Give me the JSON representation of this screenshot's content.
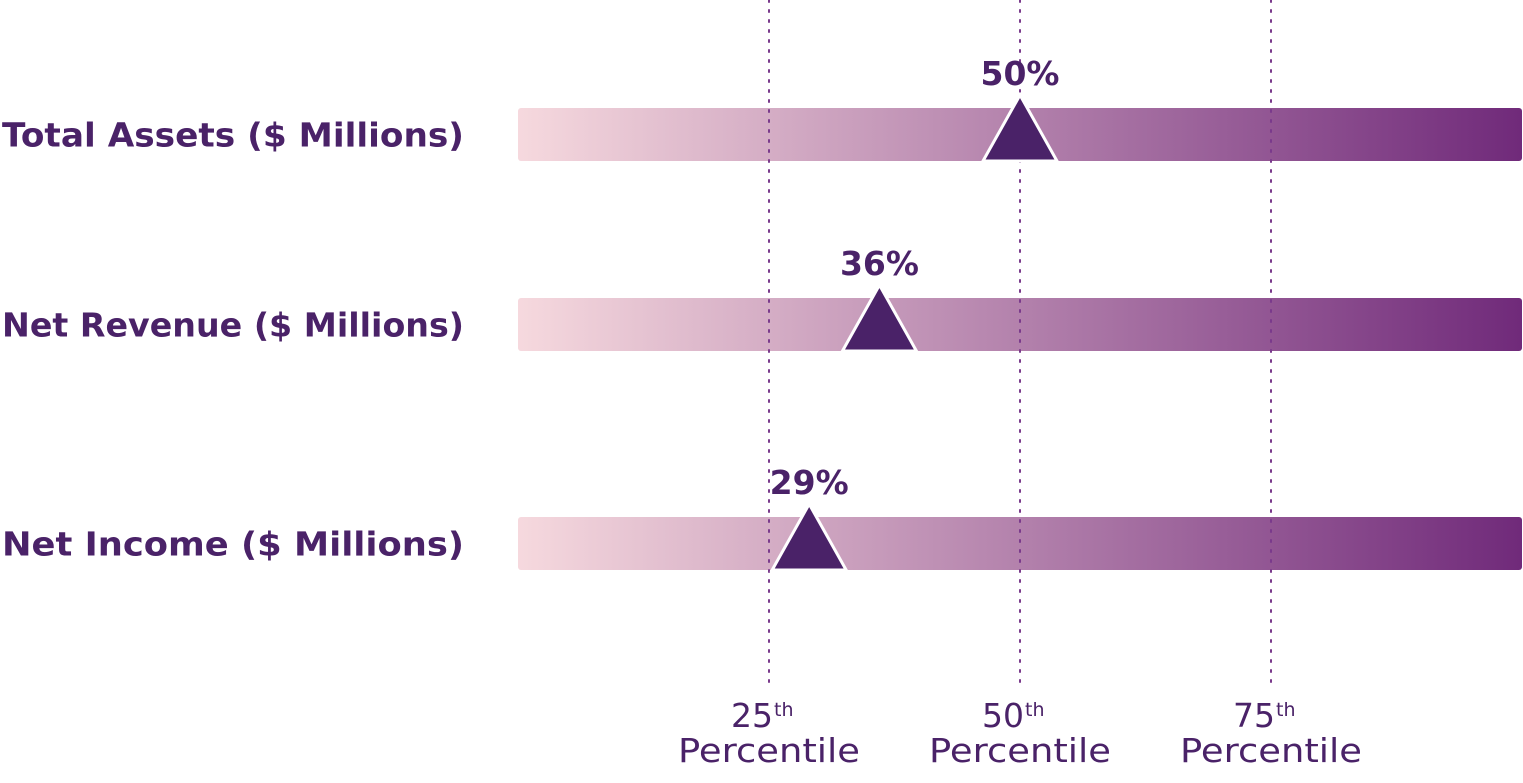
{
  "chart_data": {
    "type": "bar",
    "categories": [
      "Total Assets ($ Millions)",
      "Net Revenue ($ Millions)",
      "Net Income ($ Millions)"
    ],
    "values": [
      50,
      36,
      29
    ],
    "value_labels": [
      "50%",
      "36%",
      "29%"
    ],
    "xlim": [
      0,
      100
    ],
    "reference_lines": [
      {
        "value": 25,
        "num": "25",
        "sup": "th",
        "word": "Percentile"
      },
      {
        "value": 50,
        "num": "50",
        "sup": "th",
        "word": "Percentile"
      },
      {
        "value": 75,
        "num": "75",
        "sup": "th",
        "word": "Percentile"
      }
    ],
    "gradient": {
      "start": "#f6d9de",
      "end": "#702a7a"
    },
    "marker_color": "#4a2268",
    "text_color": "#4a2268",
    "grid": false,
    "legend": "none"
  }
}
